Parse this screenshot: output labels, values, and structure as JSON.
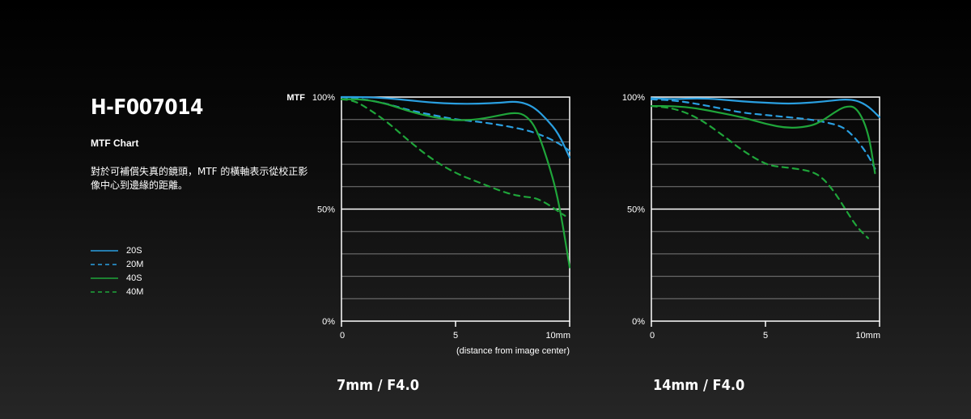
{
  "header": {
    "title": "H-F007014",
    "subtitle": "MTF Chart",
    "description": "對於可補償失真的鏡頭，MTF 的橫軸表示從校正影像中心到邊緣的距離。"
  },
  "legend": [
    {
      "name": "20S",
      "color": "#2a9fe0",
      "style": "solid"
    },
    {
      "name": "20M",
      "color": "#2a9fe0",
      "style": "dashed"
    },
    {
      "name": "40S",
      "color": "#1fa53a",
      "style": "solid"
    },
    {
      "name": "40M",
      "color": "#1fa53a",
      "style": "dashed"
    }
  ],
  "chart_data": [
    {
      "type": "line",
      "title": "7mm / F4.0",
      "ylabel": "MTF",
      "xlabel": "(distance from image center)",
      "xlim": [
        0,
        10
      ],
      "ylim": [
        0,
        100
      ],
      "x_ticks": [
        "0",
        "5",
        "10mm"
      ],
      "y_ticks": [
        "0%",
        "50%",
        "100%"
      ],
      "grid": true,
      "series": [
        {
          "name": "20S",
          "color": "#2a9fe0",
          "dash": false,
          "x": [
            0,
            1,
            2,
            3,
            4,
            5,
            6,
            7,
            7.5,
            8,
            8.5,
            9,
            9.5,
            10
          ],
          "y": [
            100,
            100,
            99.5,
            98.5,
            97.5,
            97,
            97,
            97.5,
            98,
            97.5,
            95,
            90,
            84,
            73
          ]
        },
        {
          "name": "20M",
          "color": "#2a9fe0",
          "dash": true,
          "x": [
            0,
            0.5,
            1,
            2,
            3,
            4,
            5,
            6,
            7,
            8,
            8.5,
            9,
            9.5,
            10
          ],
          "y": [
            99,
            99.5,
            99,
            97,
            94,
            92,
            90,
            89,
            87.5,
            85.5,
            84,
            82,
            79.5,
            76
          ]
        },
        {
          "name": "40S",
          "color": "#1fa53a",
          "dash": false,
          "x": [
            0,
            1,
            2,
            3,
            4,
            5,
            6,
            7,
            7.5,
            8,
            8.5,
            9,
            9.5,
            10
          ],
          "y": [
            99,
            99,
            97,
            93.5,
            91,
            89.5,
            90,
            92,
            93,
            92.5,
            87,
            73,
            55,
            24
          ]
        },
        {
          "name": "40M",
          "color": "#1fa53a",
          "dash": true,
          "x": [
            0,
            0.5,
            1,
            2,
            3,
            4,
            5,
            6,
            7,
            7.5,
            8,
            8.5,
            9,
            9.5,
            9.8
          ],
          "y": [
            99,
            98.5,
            96,
            89,
            80,
            72,
            66,
            62,
            58,
            56.5,
            55.5,
            55,
            52.5,
            49,
            47
          ]
        }
      ]
    },
    {
      "type": "line",
      "title": "14mm / F4.0",
      "ylabel": "",
      "xlabel": "",
      "xlim": [
        0,
        10
      ],
      "ylim": [
        0,
        100
      ],
      "x_ticks": [
        "0",
        "5",
        "10mm"
      ],
      "y_ticks": [
        "0%",
        "50%",
        "100%"
      ],
      "grid": true,
      "series": [
        {
          "name": "20S",
          "color": "#2a9fe0",
          "dash": false,
          "x": [
            0,
            1,
            2,
            3,
            4,
            5,
            6,
            7,
            8,
            8.5,
            9,
            9.5,
            10
          ],
          "y": [
            99.5,
            99,
            99.5,
            99,
            98,
            97.5,
            97,
            97.5,
            98.5,
            99,
            98.5,
            96,
            91
          ]
        },
        {
          "name": "20M",
          "color": "#2a9fe0",
          "dash": true,
          "x": [
            0,
            1,
            2,
            3,
            4,
            5,
            6,
            7,
            8,
            8.5,
            9,
            9.5,
            9.8
          ],
          "y": [
            99,
            98.5,
            97,
            95,
            93,
            92,
            91,
            90,
            88,
            86,
            81,
            74,
            68
          ]
        },
        {
          "name": "40S",
          "color": "#1fa53a",
          "dash": false,
          "x": [
            0,
            1,
            2,
            3,
            4,
            5,
            6,
            7,
            7.5,
            8,
            8.5,
            9,
            9.5,
            9.8
          ],
          "y": [
            96,
            96,
            95,
            93,
            91,
            88,
            86,
            87,
            89.5,
            93,
            96,
            95.5,
            85,
            66
          ]
        },
        {
          "name": "40M",
          "color": "#1fa53a",
          "dash": true,
          "x": [
            0,
            1,
            2,
            3,
            4,
            5,
            5.5,
            6,
            7,
            7.5,
            8,
            8.5,
            9,
            9.5
          ],
          "y": [
            96,
            95,
            91,
            84,
            76,
            70,
            69,
            68.5,
            67,
            64,
            58,
            50,
            42,
            37
          ]
        }
      ]
    }
  ]
}
